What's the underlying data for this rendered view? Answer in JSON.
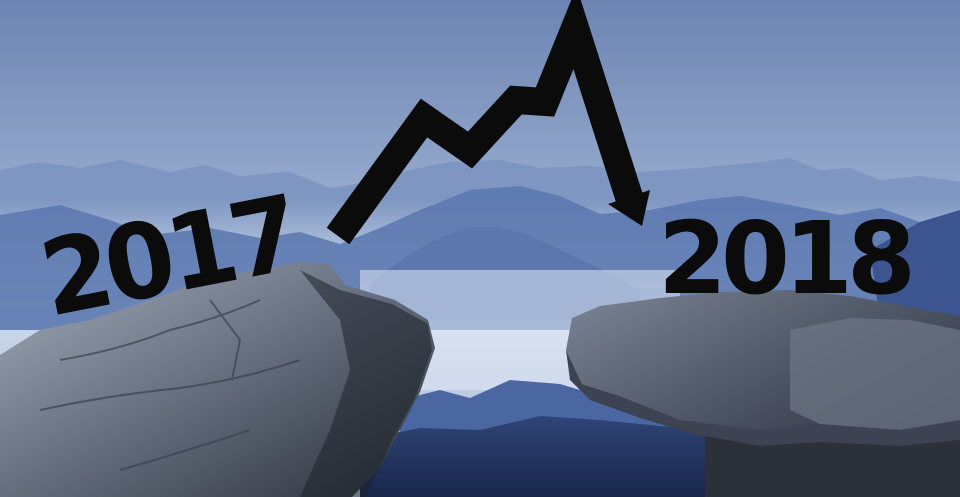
{
  "scene": {
    "left_year": "2017",
    "right_year": "2018"
  },
  "colors": {
    "sky_top": "#6f86b4",
    "sky_horizon": "#c9d6ea",
    "haze": "#dfe8f3",
    "mountain_far": "#7a93c0",
    "mountain_mid": "#4c6aa3",
    "mountain_near": "#22355f",
    "rock_light": "#8c95a4",
    "rock_dark": "#2c3038",
    "text": "#0b0b0b"
  },
  "icons": {
    "trend": "zigzag-down-arrow"
  }
}
